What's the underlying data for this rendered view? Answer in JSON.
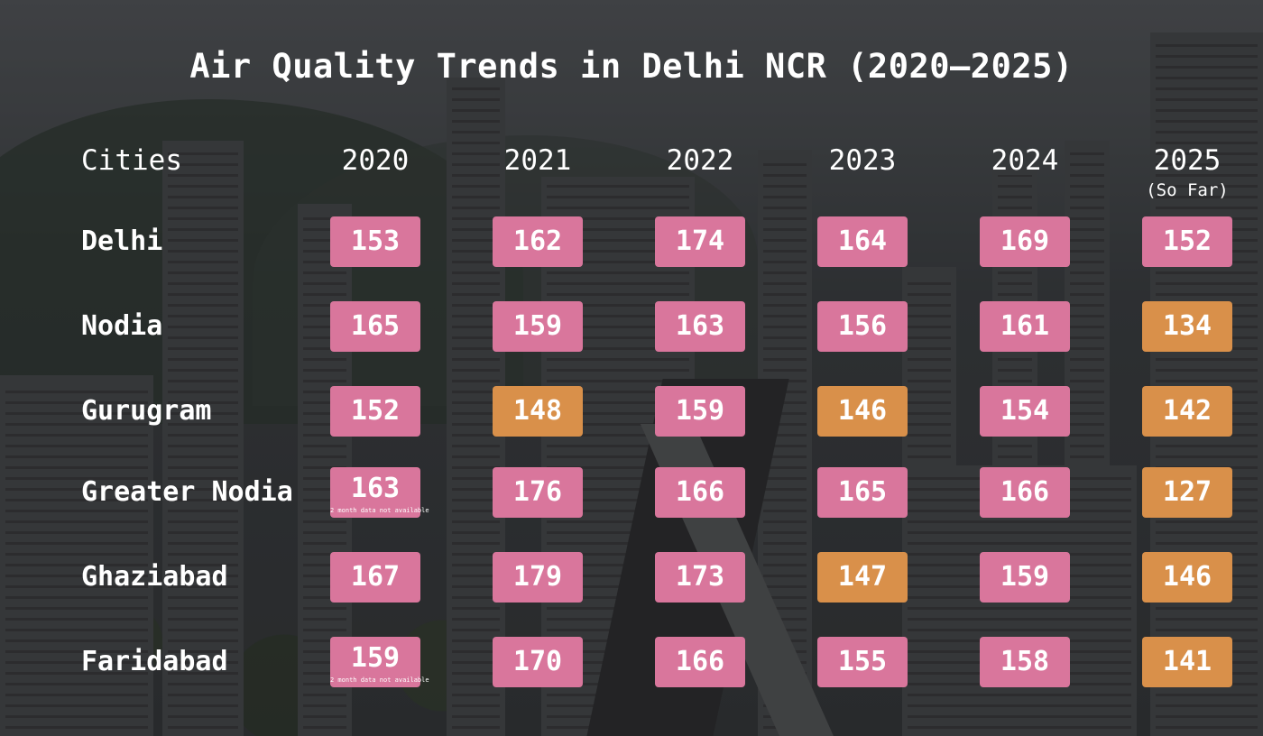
{
  "chart_data": {
    "type": "table",
    "title": "Air Quality Trends in Delhi NCR (2020—2025)",
    "column_header": "Cities",
    "columns": [
      {
        "label": "2020",
        "sub": ""
      },
      {
        "label": "2021",
        "sub": ""
      },
      {
        "label": "2022",
        "sub": ""
      },
      {
        "label": "2023",
        "sub": ""
      },
      {
        "label": "2024",
        "sub": ""
      },
      {
        "label": "2025",
        "sub": "(So Far)"
      }
    ],
    "rows": [
      {
        "city": "Delhi",
        "values": [
          153,
          162,
          174,
          164,
          169,
          152
        ],
        "notes": [
          "",
          "",
          "",
          "",
          "",
          ""
        ]
      },
      {
        "city": "Nodia",
        "values": [
          165,
          159,
          163,
          156,
          161,
          134
        ],
        "notes": [
          "",
          "",
          "",
          "",
          "",
          ""
        ]
      },
      {
        "city": "Gurugram",
        "values": [
          152,
          148,
          159,
          146,
          154,
          142
        ],
        "notes": [
          "",
          "",
          "",
          "",
          "",
          ""
        ]
      },
      {
        "city": "Greater Nodia",
        "values": [
          163,
          176,
          166,
          165,
          166,
          127
        ],
        "notes": [
          "2 month data not available",
          "",
          "",
          "",
          "",
          ""
        ]
      },
      {
        "city": "Ghaziabad",
        "values": [
          167,
          179,
          173,
          147,
          159,
          146
        ],
        "notes": [
          "",
          "",
          "",
          "",
          "",
          ""
        ]
      },
      {
        "city": "Faridabad",
        "values": [
          159,
          170,
          166,
          155,
          158,
          141
        ],
        "notes": [
          "2 month data not available",
          "",
          "",
          "",
          "",
          ""
        ]
      }
    ],
    "color_threshold": 150,
    "colors": {
      "above_threshold": "#d9769c",
      "below_threshold": "#d9904a"
    }
  }
}
